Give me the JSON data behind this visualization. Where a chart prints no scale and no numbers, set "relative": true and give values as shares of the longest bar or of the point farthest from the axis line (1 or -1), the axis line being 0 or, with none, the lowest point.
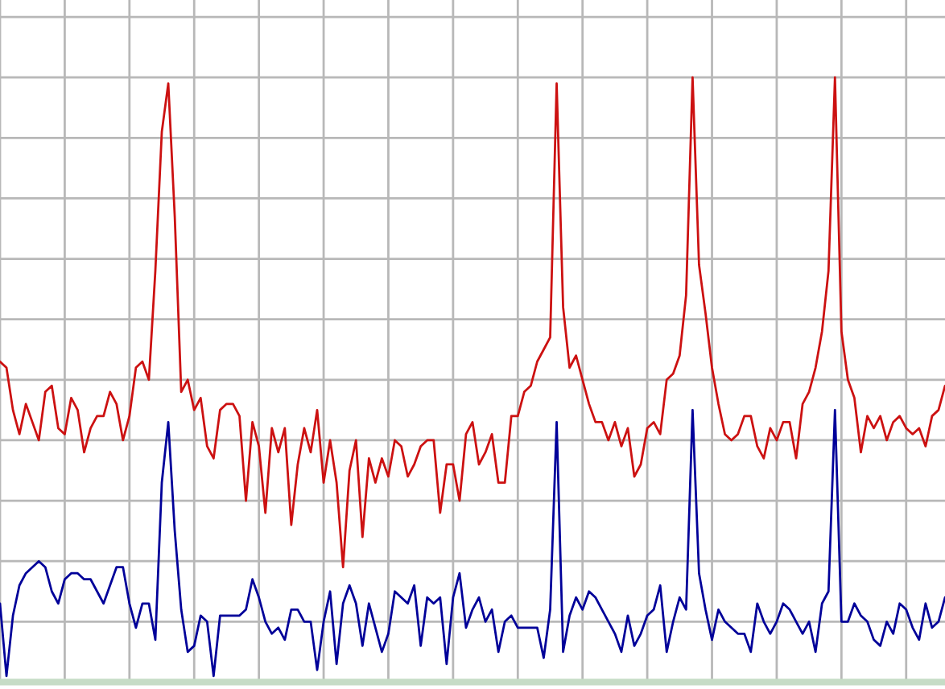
{
  "chart_data": {
    "type": "line",
    "relative": true,
    "grid": true,
    "categories": [
      null,
      null,
      null,
      null,
      null,
      null,
      null,
      null,
      null,
      null,
      null,
      null,
      null,
      null,
      null,
      null,
      null,
      null,
      null,
      null,
      null,
      null,
      null,
      null,
      null,
      null,
      null,
      null,
      null,
      null,
      null,
      null,
      null,
      null,
      null,
      null,
      null,
      null,
      null,
      null,
      null,
      null,
      null,
      null,
      null,
      null,
      null,
      null,
      null,
      null,
      null,
      null,
      null,
      null,
      null,
      null,
      null,
      null,
      null,
      null,
      null,
      null,
      null,
      null,
      null,
      null,
      null,
      null,
      null,
      null,
      null,
      null,
      null,
      null,
      null,
      null,
      null,
      null,
      null,
      null,
      null,
      null,
      null,
      null,
      null,
      null,
      null,
      null,
      null,
      null,
      null,
      null,
      null,
      null,
      null,
      null,
      null,
      null,
      null,
      null,
      null,
      null,
      null,
      null,
      null,
      null,
      null,
      null,
      null,
      null,
      null,
      null,
      null,
      null,
      null,
      null,
      null,
      null,
      null,
      null,
      null,
      null,
      null,
      null,
      null,
      null,
      null,
      null,
      null,
      null,
      null,
      null,
      null,
      null,
      null,
      null,
      null,
      null,
      null,
      null,
      null,
      null,
      null,
      null,
      null,
      null,
      null
    ],
    "series": [
      {
        "color": "#cc1111",
        "values": [
          0.53,
          0.52,
          0.45,
          0.41,
          0.46,
          0.43,
          0.4,
          0.48,
          0.49,
          0.42,
          0.41,
          0.47,
          0.45,
          0.38,
          0.42,
          0.44,
          0.44,
          0.48,
          0.46,
          0.4,
          0.44,
          0.52,
          0.53,
          0.5,
          0.68,
          0.91,
          0.99,
          0.77,
          0.48,
          0.5,
          0.45,
          0.47,
          0.39,
          0.37,
          0.45,
          0.46,
          0.46,
          0.44,
          0.3,
          0.43,
          0.39,
          0.28,
          0.42,
          0.38,
          0.42,
          0.26,
          0.36,
          0.42,
          0.38,
          0.45,
          0.33,
          0.4,
          0.33,
          0.19,
          0.35,
          0.4,
          0.24,
          0.37,
          0.33,
          0.37,
          0.34,
          0.4,
          0.39,
          0.34,
          0.36,
          0.39,
          0.4,
          0.4,
          0.28,
          0.36,
          0.36,
          0.3,
          0.41,
          0.43,
          0.36,
          0.38,
          0.41,
          0.33,
          0.33,
          0.44,
          0.44,
          0.48,
          0.49,
          0.53,
          0.55,
          0.57,
          0.99,
          0.62,
          0.52,
          0.54,
          0.5,
          0.46,
          0.43,
          0.43,
          0.4,
          0.43,
          0.39,
          0.42,
          0.34,
          0.36,
          0.42,
          0.43,
          0.41,
          0.5,
          0.51,
          0.54,
          0.64,
          1.0,
          0.69,
          0.61,
          0.52,
          0.46,
          0.41,
          0.4,
          0.41,
          0.44,
          0.44,
          0.39,
          0.37,
          0.42,
          0.4,
          0.43,
          0.43,
          0.37,
          0.46,
          0.48,
          0.52,
          0.58,
          0.68,
          1.0,
          0.58,
          0.5,
          0.47,
          0.38,
          0.44,
          0.42,
          0.44,
          0.4,
          0.43,
          0.44,
          0.42,
          0.41,
          0.42,
          0.39,
          0.44,
          0.45,
          0.49
        ]
      },
      {
        "color": "#000099",
        "values": [
          0.13,
          0.01,
          0.11,
          0.16,
          0.18,
          0.19,
          0.2,
          0.19,
          0.15,
          0.13,
          0.17,
          0.18,
          0.18,
          0.17,
          0.17,
          0.15,
          0.13,
          0.16,
          0.19,
          0.19,
          0.13,
          0.09,
          0.13,
          0.13,
          0.07,
          0.33,
          0.43,
          0.25,
          0.12,
          0.05,
          0.06,
          0.11,
          0.1,
          0.01,
          0.11,
          0.11,
          0.11,
          0.11,
          0.12,
          0.17,
          0.14,
          0.1,
          0.08,
          0.09,
          0.07,
          0.12,
          0.12,
          0.1,
          0.1,
          0.02,
          0.1,
          0.15,
          0.03,
          0.13,
          0.16,
          0.13,
          0.06,
          0.13,
          0.09,
          0.05,
          0.08,
          0.15,
          0.14,
          0.13,
          0.16,
          0.06,
          0.14,
          0.13,
          0.14,
          0.03,
          0.14,
          0.18,
          0.09,
          0.12,
          0.14,
          0.1,
          0.12,
          0.05,
          0.1,
          0.11,
          0.09,
          0.09,
          0.09,
          0.09,
          0.04,
          0.12,
          0.43,
          0.05,
          0.11,
          0.14,
          0.12,
          0.15,
          0.14,
          0.12,
          0.1,
          0.08,
          0.05,
          0.11,
          0.06,
          0.08,
          0.11,
          0.12,
          0.16,
          0.05,
          0.1,
          0.14,
          0.12,
          0.45,
          0.18,
          0.12,
          0.07,
          0.12,
          0.1,
          0.09,
          0.08,
          0.08,
          0.05,
          0.13,
          0.1,
          0.08,
          0.1,
          0.13,
          0.12,
          0.1,
          0.08,
          0.1,
          0.05,
          0.13,
          0.15,
          0.45,
          0.1,
          0.1,
          0.13,
          0.11,
          0.1,
          0.07,
          0.06,
          0.1,
          0.08,
          0.13,
          0.12,
          0.09,
          0.07,
          0.13,
          0.09,
          0.1,
          0.14
        ]
      }
    ]
  }
}
